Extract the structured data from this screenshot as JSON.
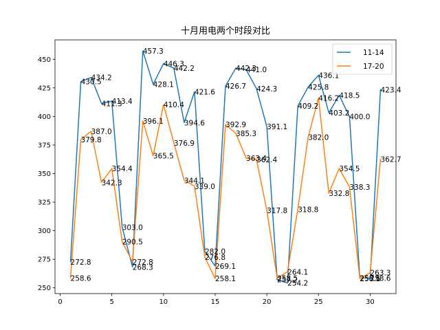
{
  "chart_data": {
    "type": "line",
    "title": "十月用电两个时段对比",
    "xlabel": "",
    "ylabel": "",
    "xlim": [
      -0.5,
      32.5
    ],
    "ylim": [
      245,
      467
    ],
    "x_ticks": [
      0,
      5,
      10,
      15,
      20,
      25,
      30
    ],
    "y_ticks": [
      250,
      275,
      300,
      325,
      350,
      375,
      400,
      425,
      450
    ],
    "grid": false,
    "legend_position": "top-right",
    "x": [
      1,
      2,
      3,
      4,
      5,
      6,
      7,
      8,
      9,
      10,
      11,
      12,
      13,
      14,
      15,
      16,
      17,
      18,
      19,
      20,
      21,
      22,
      23,
      24,
      25,
      26,
      27,
      28,
      29,
      30,
      31
    ],
    "series": [
      {
        "name": "11-14",
        "color": "#1f77b4",
        "values": [
          272.8,
          430.5,
          434.2,
          411.3,
          413.4,
          303.0,
          268.3,
          457.3,
          428.1,
          446.3,
          442.2,
          394.6,
          421.6,
          282.0,
          269.1,
          426.7,
          442.3,
          441.0,
          424.3,
          391.1,
          257.2,
          254.2,
          409.2,
          425.8,
          436.1,
          403.2,
          418.5,
          400.0,
          258.6,
          258.6,
          423.4
        ]
      },
      {
        "name": "17-20",
        "color": "#ff7f0e",
        "values": [
          258.6,
          379.8,
          387.0,
          342.3,
          354.4,
          290.5,
          272.8,
          396.1,
          365.5,
          410.4,
          376.9,
          344.1,
          339.0,
          276.8,
          258.1,
          392.9,
          385.3,
          363.4,
          362.4,
          317.8,
          258.5,
          264.1,
          318.8,
          382.0,
          416.2,
          332.8,
          354.5,
          338.3,
          258.1,
          263.3,
          362.7
        ]
      }
    ]
  }
}
